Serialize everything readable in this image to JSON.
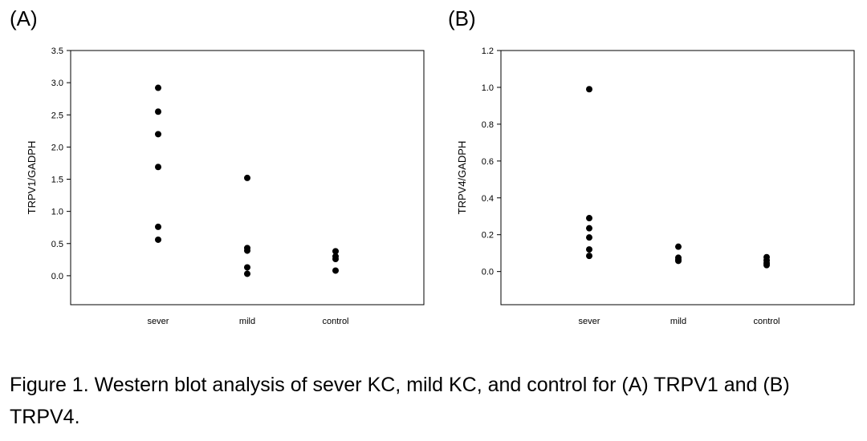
{
  "panels": {
    "a_label": "(A)",
    "b_label": "(B)"
  },
  "caption": "Figure 1. Western blot analysis of sever KC, mild KC, and control for (A) TRPV1 and (B) TRPV4.",
  "chart_data": [
    {
      "type": "scatter",
      "panel": "(A)",
      "categories": [
        "sever",
        "mild",
        "control"
      ],
      "ylabel": "TRPV1/GADPH",
      "xlabel": "",
      "ylim": [
        -0.45,
        3.5
      ],
      "yticks": [
        0.0,
        0.5,
        1.0,
        1.5,
        2.0,
        2.5,
        3.0,
        3.5
      ],
      "ytick_labels": [
        "0.0",
        "0.5",
        "1.0",
        "1.5",
        "2.0",
        "2.5",
        "3.0",
        "3.5"
      ],
      "grid": false,
      "points": [
        {
          "category": "sever",
          "y": 2.92
        },
        {
          "category": "sever",
          "y": 2.55
        },
        {
          "category": "sever",
          "y": 2.2
        },
        {
          "category": "sever",
          "y": 1.69
        },
        {
          "category": "sever",
          "y": 0.76
        },
        {
          "category": "sever",
          "y": 0.56
        },
        {
          "category": "mild",
          "y": 1.52
        },
        {
          "category": "mild",
          "y": 0.43
        },
        {
          "category": "mild",
          "y": 0.39
        },
        {
          "category": "mild",
          "y": 0.13
        },
        {
          "category": "mild",
          "y": 0.03
        },
        {
          "category": "control",
          "y": 0.38
        },
        {
          "category": "control",
          "y": 0.3
        },
        {
          "category": "control",
          "y": 0.26
        },
        {
          "category": "control",
          "y": 0.08
        }
      ],
      "marker_color": "#000000"
    },
    {
      "type": "scatter",
      "panel": "(B)",
      "categories": [
        "sever",
        "mild",
        "control"
      ],
      "ylabel": "TRPV4/GADPH",
      "xlabel": "",
      "ylim": [
        -0.18,
        1.2
      ],
      "yticks": [
        0.0,
        0.2,
        0.4,
        0.6,
        0.8,
        1.0,
        1.2
      ],
      "ytick_labels": [
        "0.0",
        "0.2",
        "0.4",
        "0.6",
        "0.8",
        "1.0",
        "1.2"
      ],
      "grid": false,
      "points": [
        {
          "category": "sever",
          "y": 0.99
        },
        {
          "category": "sever",
          "y": 0.29
        },
        {
          "category": "sever",
          "y": 0.235
        },
        {
          "category": "sever",
          "y": 0.185
        },
        {
          "category": "sever",
          "y": 0.12
        },
        {
          "category": "sever",
          "y": 0.085
        },
        {
          "category": "mild",
          "y": 0.135
        },
        {
          "category": "mild",
          "y": 0.075
        },
        {
          "category": "mild",
          "y": 0.065
        },
        {
          "category": "mild",
          "y": 0.058
        },
        {
          "category": "control",
          "y": 0.078
        },
        {
          "category": "control",
          "y": 0.06
        },
        {
          "category": "control",
          "y": 0.045
        },
        {
          "category": "control",
          "y": 0.035
        }
      ],
      "marker_color": "#000000"
    }
  ]
}
